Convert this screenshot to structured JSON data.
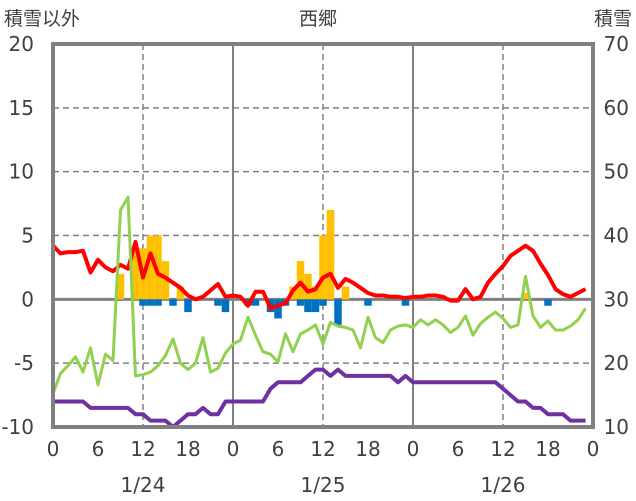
{
  "chart_data": {
    "type": "bar+line",
    "title": "西郷",
    "ylabel_left": "積雪以外",
    "ylabel_right": "積雪",
    "ylim_left": [
      -10,
      20
    ],
    "ylim_right": [
      10,
      70
    ],
    "yticks_left": [
      "20",
      "15",
      "10",
      "5",
      "0",
      "-5",
      "-10"
    ],
    "yticks_right": [
      "70",
      "60",
      "50",
      "40",
      "30",
      "20",
      "10"
    ],
    "xticks": [
      "0",
      "6",
      "12",
      "18",
      "0",
      "6",
      "12",
      "18",
      "0",
      "6",
      "12",
      "18",
      "0"
    ],
    "date_labels": [
      "1/24",
      "1/25",
      "1/26"
    ],
    "x_hours": 72,
    "grid": true,
    "colors": {
      "red": "#ff0000",
      "green": "#92d050",
      "purple": "#7030a0",
      "orange": "#ffc000",
      "blue": "#0070c0",
      "frame": "#808080"
    },
    "series": [
      {
        "name": "red-line",
        "axis": "left",
        "type": "line",
        "color": "#ff0000",
        "values": [
          4.2,
          3.6,
          3.7,
          3.7,
          3.8,
          2.1,
          3.1,
          2.5,
          2.2,
          2.7,
          2.4,
          4.5,
          1.7,
          3.6,
          2.0,
          1.7,
          1.3,
          0.9,
          0.3,
          0.0,
          0.2,
          0.7,
          1.2,
          0.2,
          0.3,
          0.2,
          -0.5,
          0.6,
          0.6,
          -0.7,
          -0.5,
          -0.3,
          0.7,
          1.3,
          0.6,
          0.8,
          1.7,
          2.0,
          0.9,
          1.6,
          1.3,
          0.9,
          0.5,
          0.3,
          0.3,
          0.2,
          0.2,
          0.1,
          0.2,
          0.2,
          0.3,
          0.3,
          0.2,
          -0.1,
          -0.1,
          0.8,
          0.0,
          0.2,
          1.3,
          2.0,
          2.6,
          3.4,
          3.8,
          4.2,
          3.8,
          2.8,
          1.9,
          0.8,
          0.4,
          0.2,
          0.5,
          0.8
        ]
      },
      {
        "name": "green-line",
        "axis": "left",
        "type": "line",
        "color": "#92d050",
        "values": [
          -7.4,
          -5.8,
          -5.2,
          -4.5,
          -5.7,
          -3.8,
          -6.7,
          -4.3,
          -4.8,
          7.0,
          8.0,
          -6.0,
          -5.9,
          -5.7,
          -5.2,
          -4.4,
          -3.1,
          -5.0,
          -5.5,
          -5.0,
          -3.0,
          -5.7,
          -5.4,
          -4.2,
          -3.5,
          -3.2,
          -1.4,
          -2.8,
          -4.1,
          -4.3,
          -4.9,
          -2.7,
          -4.1,
          -2.7,
          -2.4,
          -2.0,
          -3.5,
          -1.8,
          -2.1,
          -2.2,
          -2.4,
          -3.8,
          -1.4,
          -3.0,
          -3.4,
          -2.4,
          -2.1,
          -2.0,
          -2.2,
          -1.6,
          -2.0,
          -1.6,
          -2.0,
          -2.6,
          -2.2,
          -1.3,
          -2.8,
          -1.9,
          -1.4,
          -1.0,
          -1.5,
          -2.2,
          -2.0,
          1.8,
          -1.3,
          -2.2,
          -1.7,
          -2.4,
          -2.4,
          -2.1,
          -1.6,
          -0.7
        ]
      },
      {
        "name": "purple-line",
        "axis": "right",
        "type": "line",
        "color": "#7030a0",
        "values": [
          14,
          14,
          14,
          14,
          14,
          13,
          13,
          13,
          13,
          13,
          13,
          12,
          12,
          11,
          11,
          11,
          10,
          11,
          12,
          12,
          13,
          12,
          12,
          14,
          14,
          14,
          14,
          14,
          14,
          16,
          17,
          17,
          17,
          17,
          18,
          19,
          19,
          18,
          19,
          18,
          18,
          18,
          18,
          18,
          18,
          18,
          17,
          18,
          17,
          17,
          17,
          17,
          17,
          17,
          17,
          17,
          17,
          17,
          17,
          17,
          16,
          15,
          14,
          14,
          13,
          13,
          12,
          12,
          12,
          11,
          11,
          11
        ]
      },
      {
        "name": "orange-bars",
        "axis": "left",
        "type": "bar",
        "color": "#ffc000",
        "values": [
          0,
          0,
          0,
          0,
          0,
          0,
          0,
          0,
          0,
          2,
          0,
          4,
          4,
          5,
          5,
          3,
          0,
          1,
          0,
          0,
          0,
          0,
          0,
          0,
          0,
          0,
          0,
          0,
          0,
          0,
          0,
          0,
          1,
          3,
          2,
          1,
          5,
          7,
          0,
          1,
          0,
          0,
          0,
          0,
          0,
          0,
          0,
          0,
          0,
          0,
          0,
          0,
          0,
          0,
          0,
          0,
          0,
          0,
          0,
          0,
          0,
          0,
          0,
          0.5,
          0,
          0,
          0,
          0,
          0,
          0,
          0,
          0
        ]
      },
      {
        "name": "blue-bars",
        "axis": "left",
        "type": "bar",
        "color": "#0070c0",
        "values": [
          0,
          0,
          0,
          0,
          0,
          0,
          0,
          0,
          0,
          0,
          0,
          0,
          -0.5,
          -0.5,
          -0.5,
          0,
          -0.5,
          0,
          -1,
          0,
          0,
          0,
          -0.5,
          -1,
          0,
          0,
          -0.5,
          -0.5,
          0,
          -1,
          -1.5,
          -0.5,
          0,
          -0.5,
          -1,
          -1,
          -0.5,
          0,
          -2,
          0,
          0,
          0,
          -0.5,
          0,
          0,
          0,
          0,
          -0.5,
          0,
          0,
          0,
          0,
          0,
          0,
          0,
          0,
          0,
          0,
          0,
          0,
          0,
          0,
          0,
          0,
          0,
          0,
          -0.5,
          0,
          0,
          0,
          0,
          0
        ]
      }
    ]
  }
}
